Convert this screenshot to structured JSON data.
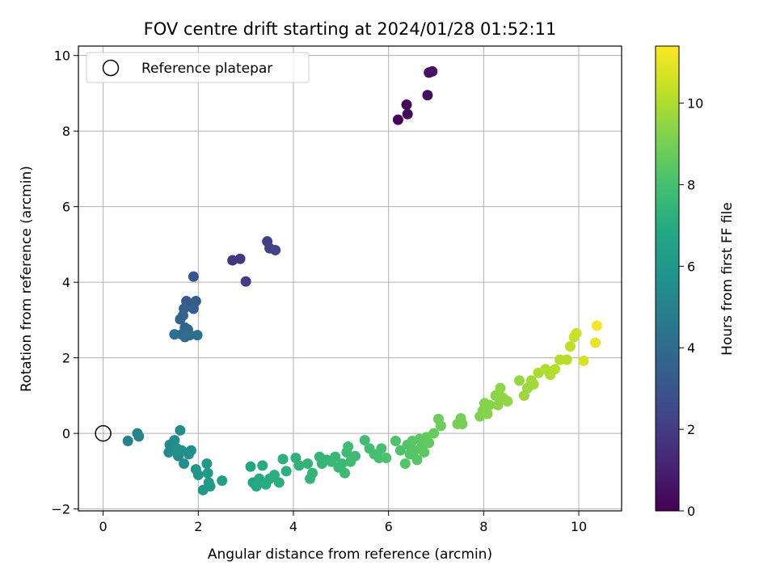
{
  "chart_data": {
    "type": "scatter",
    "title": "FOV centre drift starting at 2024/01/28 01:52:11",
    "xlabel": "Angular distance from reference (arcmin)",
    "ylabel": "Rotation from reference (arcmin)",
    "xlim": [
      -0.52,
      10.9
    ],
    "ylim": [
      -2.05,
      10.25
    ],
    "xticks": [
      0,
      2,
      4,
      6,
      8,
      10
    ],
    "yticks": [
      -2,
      0,
      2,
      4,
      6,
      8,
      10
    ],
    "grid": true,
    "legend": {
      "position": "top-left",
      "entries": [
        "Reference platepar"
      ]
    },
    "reference_point": {
      "x": 0,
      "y": 0
    },
    "colorbar": {
      "label": "Hours from first FF file",
      "colormap": "viridis",
      "range": [
        0,
        11.4
      ],
      "ticks": [
        0,
        2,
        4,
        6,
        8,
        10
      ]
    },
    "points": [
      {
        "x": 6.2,
        "y": 8.3,
        "c": 0.1
      },
      {
        "x": 6.38,
        "y": 8.7,
        "c": 0.2
      },
      {
        "x": 6.4,
        "y": 8.45,
        "c": 0.3
      },
      {
        "x": 6.82,
        "y": 8.95,
        "c": 0.4
      },
      {
        "x": 6.85,
        "y": 9.55,
        "c": 0.5
      },
      {
        "x": 6.92,
        "y": 9.58,
        "c": 0.6
      },
      {
        "x": 2.72,
        "y": 4.58,
        "c": 1.8
      },
      {
        "x": 2.88,
        "y": 4.62,
        "c": 1.9
      },
      {
        "x": 3.0,
        "y": 4.02,
        "c": 2.0
      },
      {
        "x": 3.45,
        "y": 5.08,
        "c": 2.1
      },
      {
        "x": 3.5,
        "y": 4.9,
        "c": 2.2
      },
      {
        "x": 3.62,
        "y": 4.85,
        "c": 2.3
      },
      {
        "x": 1.9,
        "y": 4.15,
        "c": 3.0
      },
      {
        "x": 1.75,
        "y": 3.5,
        "c": 3.1
      },
      {
        "x": 1.8,
        "y": 3.4,
        "c": 3.2
      },
      {
        "x": 1.95,
        "y": 3.5,
        "c": 3.3
      },
      {
        "x": 1.9,
        "y": 3.3,
        "c": 3.4
      },
      {
        "x": 1.7,
        "y": 3.3,
        "c": 3.5
      },
      {
        "x": 1.68,
        "y": 3.12,
        "c": 3.6
      },
      {
        "x": 1.62,
        "y": 3.02,
        "c": 3.6
      },
      {
        "x": 1.72,
        "y": 2.8,
        "c": 3.7
      },
      {
        "x": 1.78,
        "y": 2.75,
        "c": 3.8
      },
      {
        "x": 1.65,
        "y": 2.62,
        "c": 3.9
      },
      {
        "x": 1.72,
        "y": 2.55,
        "c": 4.0
      },
      {
        "x": 1.82,
        "y": 2.6,
        "c": 4.0
      },
      {
        "x": 1.5,
        "y": 2.62,
        "c": 4.1
      },
      {
        "x": 1.98,
        "y": 2.6,
        "c": 4.2
      },
      {
        "x": 0.52,
        "y": -0.2,
        "c": 5.0
      },
      {
        "x": 0.72,
        "y": 0.0,
        "c": 5.1
      },
      {
        "x": 0.75,
        "y": -0.08,
        "c": 5.1
      },
      {
        "x": 1.4,
        "y": -0.3,
        "c": 5.3
      },
      {
        "x": 1.38,
        "y": -0.5,
        "c": 5.4
      },
      {
        "x": 1.5,
        "y": -0.18,
        "c": 5.4
      },
      {
        "x": 1.58,
        "y": -0.6,
        "c": 5.5
      },
      {
        "x": 1.62,
        "y": 0.08,
        "c": 5.5
      },
      {
        "x": 1.65,
        "y": -0.45,
        "c": 5.6
      },
      {
        "x": 1.7,
        "y": -0.8,
        "c": 5.6
      },
      {
        "x": 1.85,
        "y": -0.45,
        "c": 5.7
      },
      {
        "x": 1.8,
        "y": -0.55,
        "c": 5.7
      },
      {
        "x": 1.55,
        "y": -0.4,
        "c": 5.6
      },
      {
        "x": 1.95,
        "y": -0.95,
        "c": 5.9
      },
      {
        "x": 2.0,
        "y": -1.1,
        "c": 6.0
      },
      {
        "x": 2.1,
        "y": -1.5,
        "c": 6.1
      },
      {
        "x": 2.18,
        "y": -0.8,
        "c": 6.1
      },
      {
        "x": 2.2,
        "y": -1.05,
        "c": 6.2
      },
      {
        "x": 2.22,
        "y": -1.3,
        "c": 6.2
      },
      {
        "x": 2.25,
        "y": -1.4,
        "c": 6.2
      },
      {
        "x": 2.5,
        "y": -1.25,
        "c": 6.4
      },
      {
        "x": 3.1,
        "y": -0.88,
        "c": 6.8
      },
      {
        "x": 3.15,
        "y": -1.3,
        "c": 6.8
      },
      {
        "x": 3.22,
        "y": -1.4,
        "c": 6.9
      },
      {
        "x": 3.28,
        "y": -1.2,
        "c": 6.9
      },
      {
        "x": 3.35,
        "y": -0.85,
        "c": 7.0
      },
      {
        "x": 3.42,
        "y": -1.35,
        "c": 7.0
      },
      {
        "x": 3.5,
        "y": -1.2,
        "c": 7.0
      },
      {
        "x": 3.6,
        "y": -1.1,
        "c": 7.1
      },
      {
        "x": 3.7,
        "y": -1.3,
        "c": 7.1
      },
      {
        "x": 3.78,
        "y": -0.68,
        "c": 7.2
      },
      {
        "x": 3.85,
        "y": -1.0,
        "c": 7.2
      },
      {
        "x": 4.05,
        "y": -0.65,
        "c": 7.3
      },
      {
        "x": 4.12,
        "y": -0.85,
        "c": 7.3
      },
      {
        "x": 4.3,
        "y": -0.8,
        "c": 7.4
      },
      {
        "x": 4.35,
        "y": -1.2,
        "c": 7.4
      },
      {
        "x": 4.4,
        "y": -1.05,
        "c": 7.4
      },
      {
        "x": 4.55,
        "y": -0.62,
        "c": 7.5
      },
      {
        "x": 4.6,
        "y": -0.8,
        "c": 7.5
      },
      {
        "x": 4.7,
        "y": -0.7,
        "c": 7.5
      },
      {
        "x": 4.8,
        "y": -0.75,
        "c": 7.6
      },
      {
        "x": 4.88,
        "y": -0.62,
        "c": 7.6
      },
      {
        "x": 4.95,
        "y": -0.9,
        "c": 7.6
      },
      {
        "x": 5.02,
        "y": -0.8,
        "c": 7.7
      },
      {
        "x": 5.08,
        "y": -1.05,
        "c": 7.7
      },
      {
        "x": 5.12,
        "y": -0.5,
        "c": 7.7
      },
      {
        "x": 5.15,
        "y": -0.35,
        "c": 7.8
      },
      {
        "x": 5.2,
        "y": -0.75,
        "c": 7.8
      },
      {
        "x": 5.3,
        "y": -0.6,
        "c": 7.8
      },
      {
        "x": 5.5,
        "y": -0.18,
        "c": 7.9
      },
      {
        "x": 5.6,
        "y": -0.4,
        "c": 7.9
      },
      {
        "x": 5.7,
        "y": -0.55,
        "c": 8.0
      },
      {
        "x": 5.8,
        "y": -0.65,
        "c": 8.0
      },
      {
        "x": 5.85,
        "y": -0.4,
        "c": 8.0
      },
      {
        "x": 5.95,
        "y": -0.65,
        "c": 8.1
      },
      {
        "x": 6.15,
        "y": -0.2,
        "c": 8.2
      },
      {
        "x": 6.25,
        "y": -0.45,
        "c": 8.2
      },
      {
        "x": 6.35,
        "y": -0.8,
        "c": 8.3
      },
      {
        "x": 6.4,
        "y": -0.3,
        "c": 8.3
      },
      {
        "x": 6.45,
        "y": -0.55,
        "c": 8.3
      },
      {
        "x": 6.5,
        "y": -0.2,
        "c": 8.4
      },
      {
        "x": 6.55,
        "y": -0.45,
        "c": 8.4
      },
      {
        "x": 6.6,
        "y": -0.7,
        "c": 8.4
      },
      {
        "x": 6.65,
        "y": -0.15,
        "c": 8.5
      },
      {
        "x": 6.7,
        "y": -0.35,
        "c": 8.5
      },
      {
        "x": 6.75,
        "y": -0.5,
        "c": 8.5
      },
      {
        "x": 6.8,
        "y": -0.1,
        "c": 8.6
      },
      {
        "x": 6.85,
        "y": -0.25,
        "c": 8.6
      },
      {
        "x": 6.95,
        "y": 0.0,
        "c": 8.7
      },
      {
        "x": 7.05,
        "y": 0.38,
        "c": 8.8
      },
      {
        "x": 7.1,
        "y": 0.2,
        "c": 8.8
      },
      {
        "x": 7.45,
        "y": 0.25,
        "c": 9.0
      },
      {
        "x": 7.52,
        "y": 0.4,
        "c": 9.0
      },
      {
        "x": 7.55,
        "y": 0.25,
        "c": 9.0
      },
      {
        "x": 7.92,
        "y": 0.45,
        "c": 9.2
      },
      {
        "x": 7.98,
        "y": 0.6,
        "c": 9.2
      },
      {
        "x": 8.02,
        "y": 0.8,
        "c": 9.3
      },
      {
        "x": 8.08,
        "y": 0.52,
        "c": 9.3
      },
      {
        "x": 8.12,
        "y": 0.75,
        "c": 9.3
      },
      {
        "x": 8.25,
        "y": 1.0,
        "c": 9.4
      },
      {
        "x": 8.3,
        "y": 0.75,
        "c": 9.4
      },
      {
        "x": 8.35,
        "y": 1.2,
        "c": 9.5
      },
      {
        "x": 8.4,
        "y": 0.95,
        "c": 9.5
      },
      {
        "x": 8.5,
        "y": 0.85,
        "c": 9.5
      },
      {
        "x": 8.75,
        "y": 1.4,
        "c": 9.6
      },
      {
        "x": 8.85,
        "y": 1.0,
        "c": 9.7
      },
      {
        "x": 8.92,
        "y": 1.2,
        "c": 9.7
      },
      {
        "x": 9.0,
        "y": 1.4,
        "c": 9.8
      },
      {
        "x": 9.05,
        "y": 1.3,
        "c": 9.8
      },
      {
        "x": 9.15,
        "y": 1.6,
        "c": 9.9
      },
      {
        "x": 9.3,
        "y": 1.7,
        "c": 10.0
      },
      {
        "x": 9.4,
        "y": 1.55,
        "c": 10.0
      },
      {
        "x": 9.5,
        "y": 1.7,
        "c": 10.1
      },
      {
        "x": 9.6,
        "y": 1.95,
        "c": 10.1
      },
      {
        "x": 9.75,
        "y": 1.95,
        "c": 10.2
      },
      {
        "x": 9.82,
        "y": 2.3,
        "c": 10.3
      },
      {
        "x": 9.9,
        "y": 2.55,
        "c": 10.4
      },
      {
        "x": 9.95,
        "y": 2.65,
        "c": 10.5
      },
      {
        "x": 10.1,
        "y": 1.92,
        "c": 10.7
      },
      {
        "x": 10.35,
        "y": 2.4,
        "c": 11.0
      },
      {
        "x": 10.38,
        "y": 2.85,
        "c": 11.2
      }
    ]
  }
}
